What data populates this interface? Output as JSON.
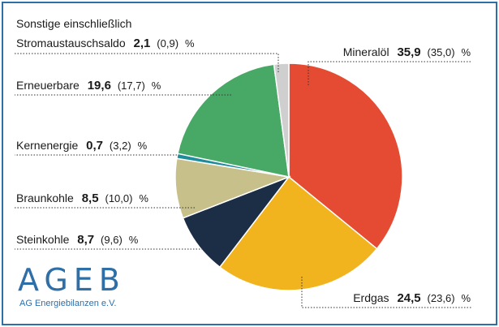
{
  "chart_data": {
    "type": "pie",
    "unit": "%",
    "slices": [
      {
        "name": "Mineralöl",
        "value": 35.9,
        "prev": "35,0",
        "label": "35,9",
        "color": "#e54b32"
      },
      {
        "name": "Erdgas",
        "value": 24.5,
        "prev": "23,6",
        "label": "24,5",
        "color": "#f1b41f"
      },
      {
        "name": "Steinkohle",
        "value": 8.7,
        "prev": "9,6",
        "label": "8,7",
        "color": "#1c2e45"
      },
      {
        "name": "Braunkohle",
        "value": 8.5,
        "prev": "10,0",
        "label": "8,5",
        "color": "#c8c08a"
      },
      {
        "name": "Kernenergie",
        "value": 0.7,
        "prev": "3,2",
        "label": "0,7",
        "color": "#1e8c9a"
      },
      {
        "name": "Erneuerbare",
        "value": 19.6,
        "prev": "17,7",
        "label": "19,6",
        "color": "#48a966"
      },
      {
        "name": "Sonstige einschließlich Stromaustauschsaldo",
        "line1": "Sonstige einschließlich",
        "line2": "Stromaustauschsaldo",
        "value": 2.1,
        "prev": "0,9",
        "label": "2,1",
        "color": "#cfcfcf"
      }
    ]
  },
  "logo": {
    "main": "AGEB",
    "sub": "AG Energiebilanzen e.V."
  }
}
